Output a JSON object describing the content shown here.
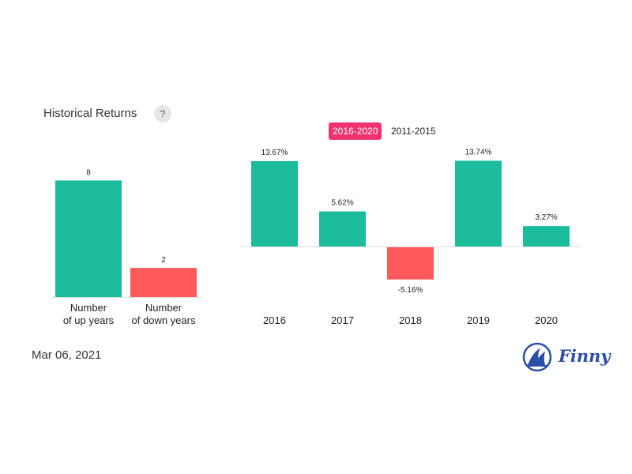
{
  "header": {
    "title": "Historical Returns",
    "help_label": "?"
  },
  "tabs": [
    {
      "label": "2016-2020",
      "active": true
    },
    {
      "label": "2011-2015",
      "active": false
    }
  ],
  "footer": {
    "date": "Mar 06, 2021",
    "brand": "Finny"
  },
  "colors": {
    "positive": "#1abc9c",
    "negative": "#ff5a5a",
    "accent": "#f0336e",
    "brand": "#2b4fa6"
  },
  "chart_data": [
    {
      "type": "bar",
      "categories": [
        [
          "Number",
          "of up years"
        ],
        [
          "Number",
          "of down years"
        ]
      ],
      "values": [
        8,
        2
      ],
      "data_labels": [
        "8",
        "2"
      ],
      "colors": [
        "#1abc9c",
        "#ff5a5a"
      ],
      "ylim": [
        0,
        9
      ]
    },
    {
      "type": "bar",
      "categories": [
        "2016",
        "2017",
        "2018",
        "2019",
        "2020"
      ],
      "values": [
        13.67,
        5.62,
        -5.16,
        13.74,
        3.27
      ],
      "data_labels": [
        "13.67%",
        "5.62%",
        "-5.16%",
        "13.74%",
        "3.27%"
      ],
      "ylim": [
        -6,
        14
      ],
      "colors": {
        "positive": "#1abc9c",
        "negative": "#ff5a5a"
      }
    }
  ]
}
